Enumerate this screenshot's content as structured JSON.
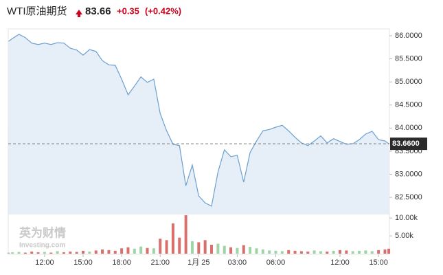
{
  "header": {
    "name": "WTI原油期货",
    "price": "83.66",
    "change": "+0.35",
    "change_pct": "(+0.42%)"
  },
  "watermark": {
    "brand": "英为财情",
    "site": "Investing.com"
  },
  "chart_data": {
    "type": "line",
    "x": [
      -2.8,
      -2.5,
      -2,
      -1.5,
      -1,
      -0.5,
      0,
      0.5,
      1,
      1.5,
      2,
      2.5,
      3,
      3.5,
      4,
      4.5,
      5,
      5.5,
      6,
      6.5,
      7,
      7.5,
      8,
      8.5,
      9,
      9.5,
      10,
      10.5,
      11,
      11.5,
      12,
      12.5,
      13,
      13.5,
      14,
      14.5,
      15,
      15.5,
      16,
      16.5,
      17,
      17.5,
      18,
      18.5,
      19,
      19.5,
      20,
      20.5,
      21,
      21.5,
      22,
      22.5,
      23,
      23.5,
      24,
      24.5,
      25,
      25.5,
      26,
      26.5,
      26.8
    ],
    "series": [
      {
        "color": "#6a9fd0",
        "fill": "#e6eef7",
        "values": [
          85.88,
          85.94,
          86.03,
          85.96,
          85.84,
          85.81,
          85.84,
          85.81,
          85.85,
          85.84,
          85.73,
          85.69,
          85.58,
          85.7,
          85.66,
          85.46,
          85.37,
          85.36,
          85.06,
          84.72,
          84.91,
          85.11,
          84.99,
          85.06,
          84.32,
          83.94,
          83.65,
          83.62,
          82.75,
          83.2,
          82.53,
          82.38,
          82.31,
          83.05,
          83.53,
          83.38,
          83.41,
          82.83,
          83.47,
          83.72,
          83.94,
          83.97,
          84.02,
          84.06,
          83.94,
          83.8,
          83.68,
          83.62,
          83.72,
          83.83,
          83.68,
          83.77,
          83.71,
          83.65,
          83.66,
          83.75,
          83.87,
          83.93,
          83.75,
          83.72,
          83.66
        ]
      },
      {
        "type": "bar",
        "axis": "y2",
        "up_color": "#9fd4a6",
        "down_color": "#d9706c",
        "values": [
          300,
          400,
          500,
          300,
          600,
          400,
          500,
          300,
          700,
          400,
          600,
          500,
          800,
          600,
          900,
          1200,
          1000,
          800,
          1500,
          1800,
          1400,
          2000,
          1600,
          1500,
          4200,
          3800,
          8500,
          4500,
          10800,
          3500,
          3200,
          3800,
          2500,
          2800,
          2200,
          1800,
          1600,
          2400,
          1900,
          1500,
          1200,
          900,
          800,
          700,
          1000,
          800,
          700,
          600,
          900,
          700,
          600,
          800,
          1000,
          900,
          700,
          800,
          900,
          700,
          1000,
          1200,
          1400
        ]
      }
    ],
    "xlim": [
      -2.83,
      26.85
    ],
    "xticks": [
      {
        "value": 0,
        "label": "12:00"
      },
      {
        "value": 3,
        "label": "15:00"
      },
      {
        "value": 6,
        "label": "18:00"
      },
      {
        "value": 9,
        "label": "21:00"
      },
      {
        "value": 12,
        "label": "1月 25"
      },
      {
        "value": 15,
        "label": "03:00"
      },
      {
        "value": 18,
        "label": "06:00"
      },
      {
        "value": 23,
        "label": "12:00"
      },
      {
        "value": 26,
        "label": "15:00"
      }
    ],
    "ylim": [
      82.143,
      86.104
    ],
    "yticks": [
      {
        "value": 82.5,
        "label": "82.5000"
      },
      {
        "value": 83,
        "label": "83.0000"
      },
      {
        "value": 83.5,
        "label": "83.5000"
      },
      {
        "value": 84,
        "label": "84.0000"
      },
      {
        "value": 84.5,
        "label": "84.5000"
      },
      {
        "value": 85,
        "label": "85.0000"
      },
      {
        "value": 85.5,
        "label": "85.5000"
      },
      {
        "value": 86,
        "label": "86.0000"
      }
    ],
    "y2lim": [
      0,
      11000
    ],
    "y2ticks": [
      {
        "value": 5000,
        "label": "5.00k"
      },
      {
        "value": 10000,
        "label": "10.00k"
      }
    ],
    "last": {
      "value": 83.66,
      "label": "83.6600"
    }
  }
}
